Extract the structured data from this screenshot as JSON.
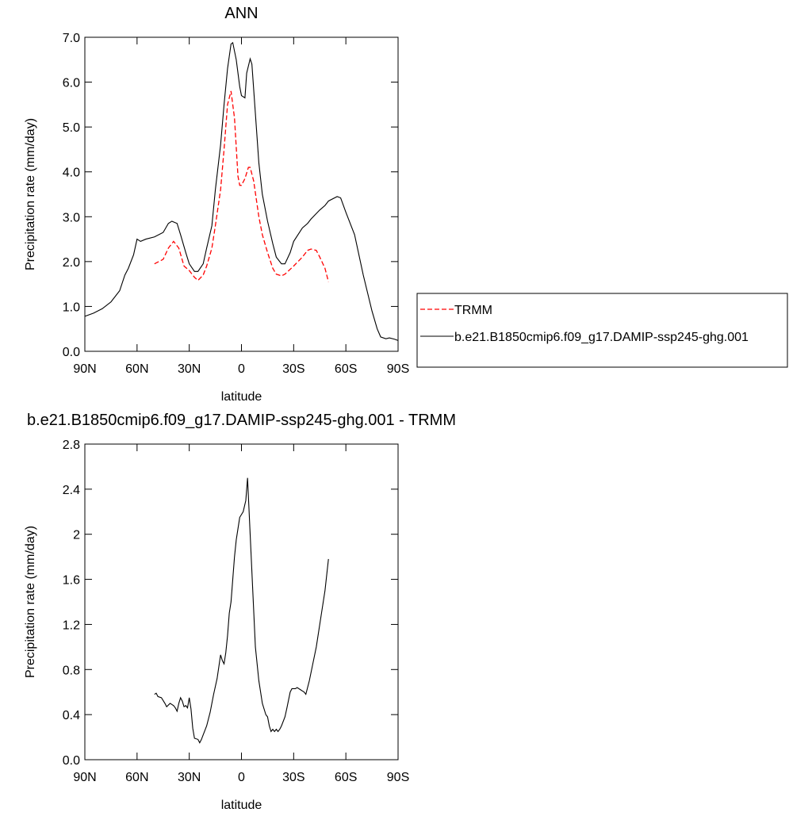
{
  "chart_data": [
    {
      "type": "line",
      "title": "ANN",
      "xlabel": "latitude",
      "ylabel": "Precipitation rate (mm/day)",
      "xlim": [
        90,
        -90
      ],
      "xticks": [
        {
          "value": 90,
          "label": "90N"
        },
        {
          "value": 60,
          "label": "60N"
        },
        {
          "value": 30,
          "label": "30N"
        },
        0,
        {
          "value": -30,
          "label": "30S"
        },
        {
          "value": -60,
          "label": "60S"
        },
        {
          "value": -90,
          "label": "90S"
        }
      ],
      "ylim": [
        0,
        7
      ],
      "yticks": [
        {
          "value": 0,
          "label": "0.0"
        },
        {
          "value": 1,
          "label": "1.0"
        },
        {
          "value": 2,
          "label": "2.0"
        },
        {
          "value": 3,
          "label": "3.0"
        },
        {
          "value": 4,
          "label": "4.0"
        },
        {
          "value": 5,
          "label": "5.0"
        },
        {
          "value": 6,
          "label": "6.0"
        },
        {
          "value": 7,
          "label": "7.0"
        }
      ],
      "legend": "right",
      "series": [
        {
          "name": "TRMM",
          "color": "#ff0000",
          "dash": true,
          "x": [
            50,
            45,
            42,
            39,
            36,
            33,
            30,
            27,
            25,
            22,
            20,
            17,
            15,
            12,
            10,
            8,
            6,
            4,
            2,
            1,
            0,
            -2,
            -4,
            -5,
            -7,
            -10,
            -12,
            -15,
            -18,
            -20,
            -23,
            -25,
            -30,
            -35,
            -38,
            -40,
            -43,
            -45,
            -48,
            -50
          ],
          "values": [
            1.95,
            2.05,
            2.3,
            2.45,
            2.3,
            1.9,
            1.8,
            1.65,
            1.58,
            1.7,
            1.9,
            2.3,
            2.8,
            3.6,
            4.5,
            5.5,
            5.8,
            5.2,
            3.9,
            3.7,
            3.7,
            3.85,
            4.1,
            4.1,
            3.8,
            3.0,
            2.6,
            2.2,
            1.85,
            1.72,
            1.68,
            1.72,
            1.9,
            2.1,
            2.25,
            2.28,
            2.25,
            2.1,
            1.85,
            1.55
          ]
        },
        {
          "name": "b.e21.B1850cmip6.f09_g17.DAMIP-ssp245-ghg.001",
          "color": "#000000",
          "dash": false,
          "x": [
            90,
            85,
            80,
            75,
            70,
            67,
            65,
            62,
            60,
            58,
            55,
            50,
            45,
            42,
            40,
            37,
            35,
            32,
            30,
            27,
            25,
            22,
            20,
            17,
            15,
            12,
            10,
            8,
            6,
            5,
            3,
            1,
            0,
            -2,
            -3,
            -5,
            -6,
            -8,
            -10,
            -12,
            -15,
            -18,
            -20,
            -23,
            -25,
            -28,
            -30,
            -35,
            -38,
            -40,
            -45,
            -48,
            -50,
            -55,
            -57,
            -60,
            -65,
            -70,
            -75,
            -78,
            -80,
            -83,
            -85,
            -88,
            -90
          ],
          "values": [
            0.78,
            0.85,
            0.95,
            1.1,
            1.35,
            1.7,
            1.85,
            2.15,
            2.5,
            2.45,
            2.5,
            2.55,
            2.65,
            2.85,
            2.9,
            2.85,
            2.6,
            2.2,
            1.95,
            1.78,
            1.78,
            1.95,
            2.3,
            2.8,
            3.6,
            4.6,
            5.5,
            6.3,
            6.85,
            6.88,
            6.5,
            5.9,
            5.7,
            5.65,
            6.2,
            6.52,
            6.4,
            5.3,
            4.2,
            3.5,
            2.9,
            2.4,
            2.1,
            1.95,
            1.95,
            2.2,
            2.45,
            2.75,
            2.85,
            2.95,
            3.15,
            3.25,
            3.35,
            3.45,
            3.42,
            3.1,
            2.6,
            1.7,
            0.9,
            0.5,
            0.32,
            0.28,
            0.3,
            0.27,
            0.24
          ]
        }
      ]
    },
    {
      "type": "line",
      "title": "b.e21.B1850cmip6.f09_g17.DAMIP-ssp245-ghg.001 - TRMM",
      "xlabel": "latitude",
      "ylabel": "Precipitation rate (mm/day)",
      "xlim": [
        90,
        -90
      ],
      "xticks": [
        {
          "value": 90,
          "label": "90N"
        },
        {
          "value": 60,
          "label": "60N"
        },
        {
          "value": 30,
          "label": "30N"
        },
        0,
        {
          "value": -30,
          "label": "30S"
        },
        {
          "value": -60,
          "label": "60S"
        },
        {
          "value": -90,
          "label": "90S"
        }
      ],
      "ylim": [
        0,
        2.8
      ],
      "yticks": [
        {
          "value": 0,
          "label": "0.0"
        },
        0.4,
        0.8,
        1.2,
        1.6,
        2.0,
        2.4,
        2.8
      ],
      "series": [
        {
          "color": "#000000",
          "x": [
            50,
            49,
            48,
            46,
            44,
            43,
            41,
            39,
            38,
            37,
            36,
            35,
            34,
            33,
            32,
            31,
            30,
            29,
            28,
            27,
            25,
            24,
            23,
            22,
            20,
            18,
            16,
            14,
            12,
            11,
            10,
            9,
            8,
            7,
            6,
            5,
            4,
            3,
            2,
            1,
            -1,
            -2.5,
            -3.5,
            -5,
            -6.5,
            -8,
            -10,
            -12,
            -14,
            -15,
            -16,
            -17,
            -18,
            -19,
            -20,
            -21,
            -22,
            -23,
            -25,
            -26,
            -28,
            -29,
            -31,
            -32,
            -34,
            -36,
            -37,
            -39,
            -41,
            -43,
            -46,
            -48,
            -50
          ],
          "values": [
            0.58,
            0.59,
            0.56,
            0.55,
            0.5,
            0.47,
            0.5,
            0.48,
            0.46,
            0.43,
            0.5,
            0.55,
            0.52,
            0.47,
            0.48,
            0.46,
            0.55,
            0.45,
            0.28,
            0.19,
            0.18,
            0.15,
            0.18,
            0.22,
            0.3,
            0.42,
            0.58,
            0.72,
            0.93,
            0.88,
            0.85,
            0.95,
            1.1,
            1.3,
            1.4,
            1.6,
            1.8,
            1.95,
            2.05,
            2.15,
            2.2,
            2.3,
            2.5,
            2.0,
            1.5,
            1.0,
            0.7,
            0.5,
            0.4,
            0.38,
            0.3,
            0.25,
            0.27,
            0.25,
            0.27,
            0.25,
            0.27,
            0.3,
            0.38,
            0.45,
            0.6,
            0.63,
            0.63,
            0.64,
            0.62,
            0.6,
            0.58,
            0.7,
            0.85,
            1.0,
            1.3,
            1.5,
            1.78
          ]
        }
      ]
    }
  ]
}
